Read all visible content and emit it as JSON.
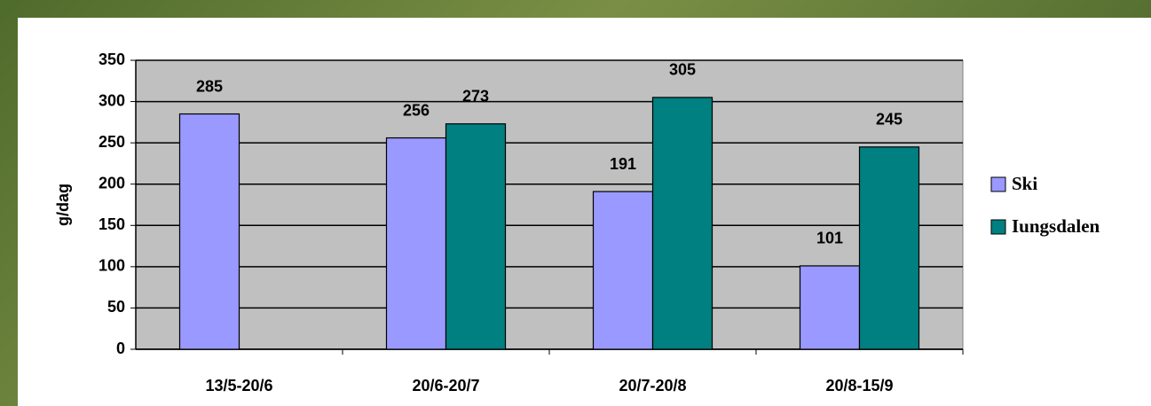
{
  "chart_data": {
    "type": "bar",
    "ylabel": "g/dag",
    "categories": [
      "13/5-20/6",
      "20/6-20/7",
      "20/7-20/8",
      "20/8-15/9"
    ],
    "series": [
      {
        "name": "Ski",
        "color": "#9999ff",
        "values": [
          285,
          256,
          191,
          101
        ]
      },
      {
        "name": "Iungsdalen",
        "color": "#008080",
        "values": [
          null,
          273,
          305,
          245
        ]
      }
    ],
    "ylim": [
      0,
      350
    ],
    "yticks": [
      0,
      50,
      100,
      150,
      200,
      250,
      300,
      350
    ],
    "grid": true,
    "legend": "right"
  }
}
